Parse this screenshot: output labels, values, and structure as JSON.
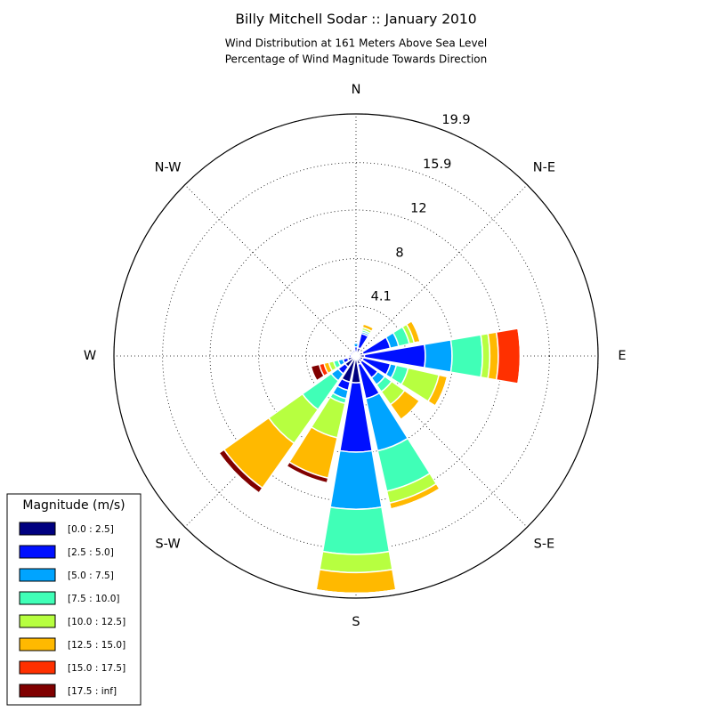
{
  "chart_data": {
    "type": "windrose",
    "title": "Billy Mitchell Sodar :: January 2010",
    "subtitle": [
      "Wind Distribution at 161 Meters Above Sea Level",
      "Percentage of Wind Magnitude Towards Direction"
    ],
    "legend_title": "Magnitude (m/s)",
    "categories": [
      "N",
      null,
      "N-E",
      null,
      "E",
      null,
      "S-E",
      null,
      "S",
      null,
      "S-W",
      null,
      "W",
      null,
      "N-W",
      null
    ],
    "rlim": [
      0,
      19.9
    ],
    "rticks": [
      4.1,
      8.0,
      12.0,
      15.9,
      19.9
    ],
    "grid": true,
    "legend": "lower left",
    "series": [
      {
        "name": "[0.0 : 2.5]",
        "color": "#000080",
        "values": [
          0.3,
          0.7,
          0.3,
          0.6,
          0.7,
          0.6,
          0.6,
          0.7,
          2.2,
          2.2,
          1.1,
          0.7,
          0.4,
          0.3,
          0.3,
          0.3
        ]
      },
      {
        "name": "[2.5 : 5.0]",
        "color": "#0010ff",
        "values": [
          0.45,
          1.2,
          0.15,
          2.3,
          5.0,
          2.3,
          1.6,
          2.9,
          5.7,
          0.7,
          0.7,
          0.4,
          0.2,
          0.2,
          0.2,
          0.2
        ]
      },
      {
        "name": "[5.0 : 7.5]",
        "color": "#00a4ff",
        "values": [
          0.3,
          0.15,
          0,
          0.7,
          2.2,
          0.5,
          0.7,
          4.4,
          4.7,
          0.7,
          0.7,
          0.4,
          0,
          0,
          0,
          0
        ]
      },
      {
        "name": "[7.5 : 10.0]",
        "color": "#40ffb7",
        "values": [
          0,
          0.15,
          0,
          0.9,
          2.5,
          1.0,
          0.7,
          3.4,
          3.7,
          0.4,
          2.9,
          0.4,
          0,
          0,
          0,
          0
        ]
      },
      {
        "name": "[10.0 : 12.5]",
        "color": "#b7ff40",
        "values": [
          0,
          0.2,
          0,
          0.4,
          0.6,
          2.6,
          1.3,
          1.0,
          1.5,
          2.9,
          3.4,
          0.4,
          0,
          0,
          0,
          0
        ]
      },
      {
        "name": "[12.5 : 15.0]",
        "color": "#ffb900",
        "values": [
          0,
          0.3,
          0,
          0.5,
          0.7,
          0.7,
          1.5,
          0.5,
          1.7,
          3.4,
          4.5,
          0.4,
          0,
          0,
          0,
          0
        ]
      },
      {
        "name": "[15.0 : 17.5]",
        "color": "#ff3000",
        "values": [
          0,
          0,
          0,
          0,
          1.8,
          0,
          0,
          0,
          0,
          0,
          0,
          0.4,
          0,
          0,
          0,
          0
        ]
      },
      {
        "name": "[17.5 : inf]",
        "color": "#800000",
        "values": [
          0,
          0,
          0,
          0,
          0,
          0,
          0,
          0,
          0,
          0.4,
          0.5,
          0.7,
          0,
          0,
          0,
          0
        ]
      }
    ]
  }
}
